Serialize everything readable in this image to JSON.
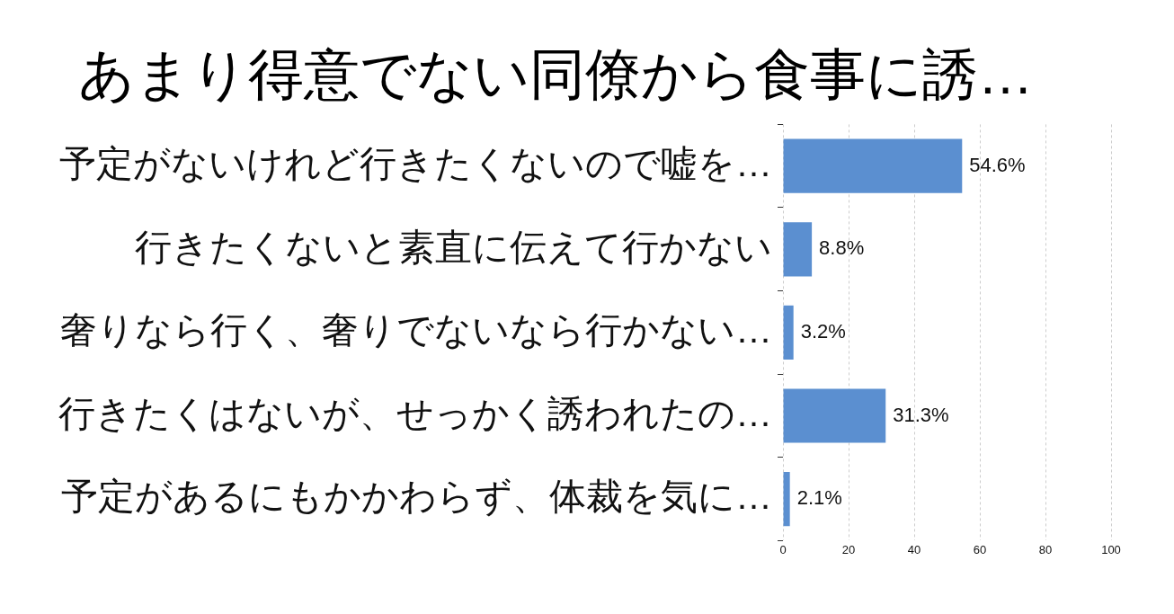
{
  "chart_data": {
    "type": "bar",
    "orientation": "horizontal",
    "title": "あまり得意でない同僚から食事に誘…",
    "categories": [
      "予定がないけれど行きたくないので嘘を…",
      "行きたくないと素直に伝えて行かない",
      "奢りなら行く、奢りでないなら行かない…",
      "行きたくはないが、せっかく誘われたの…",
      "予定があるにもかかわらず、体裁を気に…"
    ],
    "values": [
      54.6,
      8.8,
      3.2,
      31.3,
      2.1
    ],
    "value_labels": [
      "54.6%",
      "8.8%",
      "3.2%",
      "31.3%",
      "2.1%"
    ],
    "color": "#5b8fd0",
    "xlim": [
      0,
      100
    ],
    "xticks": [
      0,
      20,
      40,
      60,
      80,
      100
    ],
    "grid": "x",
    "legend": false
  }
}
